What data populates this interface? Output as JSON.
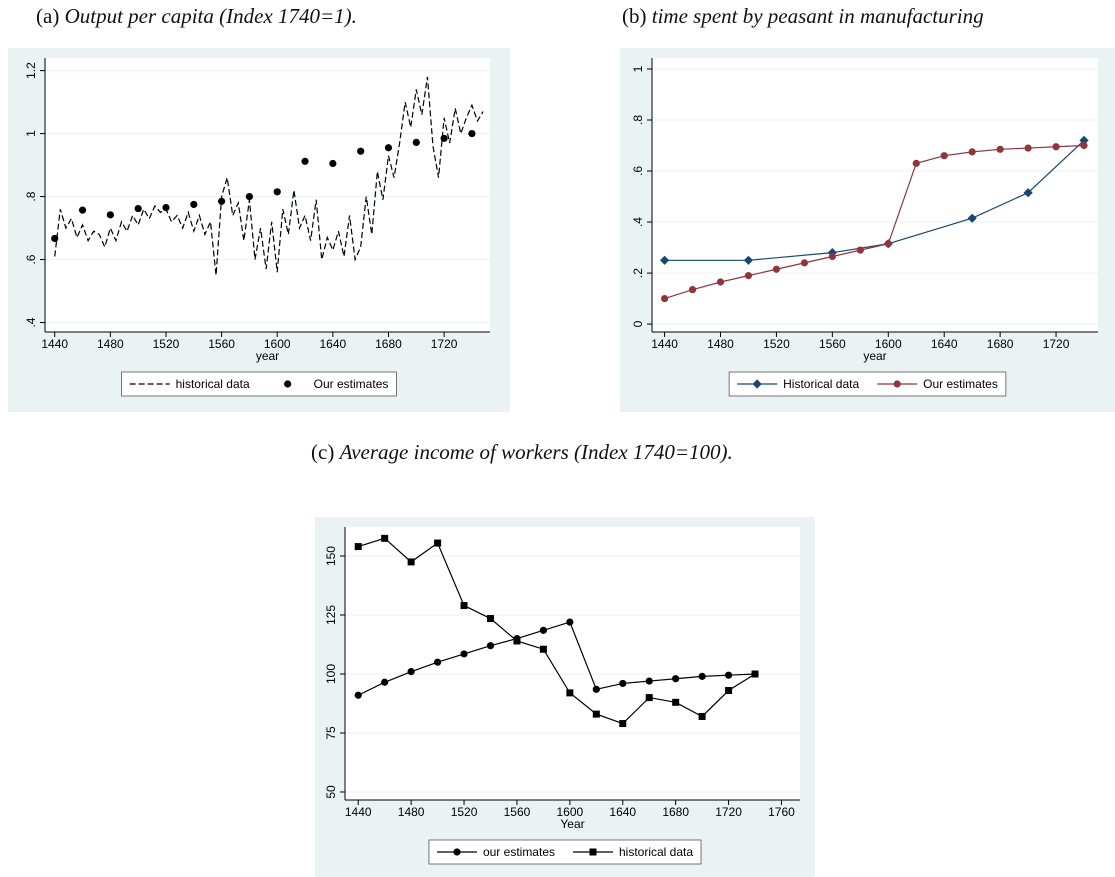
{
  "chart_data": [
    {
      "type": "line",
      "label": "(a)",
      "title": "Output per capita (Index 1740=1).",
      "xlabel": "year",
      "xlim": [
        1433,
        1753
      ],
      "xticks": [
        1440,
        1480,
        1520,
        1560,
        1600,
        1640,
        1680,
        1720
      ],
      "ylim": [
        0.37,
        1.24
      ],
      "yticks": [
        {
          "value": 0.4,
          "label": ".4"
        },
        {
          "value": 0.6,
          "label": ".6"
        },
        {
          "value": 0.8,
          "label": ".8"
        },
        1,
        1.2
      ],
      "grid": true,
      "legend": "bottom",
      "series": [
        {
          "name": "historical data",
          "color": "#000000",
          "line": "dashed",
          "marker": "none",
          "x": [
            1440,
            1444,
            1448,
            1452,
            1456,
            1460,
            1464,
            1468,
            1472,
            1476,
            1480,
            1484,
            1488,
            1492,
            1496,
            1500,
            1504,
            1508,
            1512,
            1516,
            1520,
            1524,
            1528,
            1532,
            1536,
            1540,
            1544,
            1548,
            1552,
            1556,
            1560,
            1564,
            1568,
            1572,
            1576,
            1580,
            1584,
            1588,
            1592,
            1596,
            1600,
            1604,
            1608,
            1612,
            1616,
            1620,
            1624,
            1628,
            1632,
            1636,
            1640,
            1644,
            1648,
            1652,
            1656,
            1660,
            1664,
            1668,
            1672,
            1676,
            1680,
            1684,
            1688,
            1692,
            1696,
            1700,
            1704,
            1708,
            1712,
            1716,
            1720,
            1724,
            1728,
            1732,
            1736,
            1740,
            1744,
            1748
          ],
          "values": [
            0.61,
            0.76,
            0.7,
            0.73,
            0.67,
            0.71,
            0.66,
            0.69,
            0.68,
            0.64,
            0.7,
            0.66,
            0.72,
            0.69,
            0.74,
            0.71,
            0.76,
            0.73,
            0.77,
            0.75,
            0.76,
            0.72,
            0.74,
            0.7,
            0.75,
            0.69,
            0.74,
            0.68,
            0.72,
            0.55,
            0.8,
            0.86,
            0.74,
            0.78,
            0.66,
            0.79,
            0.6,
            0.7,
            0.57,
            0.72,
            0.56,
            0.76,
            0.68,
            0.82,
            0.7,
            0.74,
            0.66,
            0.79,
            0.6,
            0.67,
            0.63,
            0.69,
            0.61,
            0.74,
            0.6,
            0.64,
            0.8,
            0.68,
            0.88,
            0.79,
            0.93,
            0.86,
            0.97,
            1.1,
            1.02,
            1.14,
            1.06,
            1.18,
            0.96,
            0.86,
            1.05,
            0.97,
            1.08,
            1.0,
            1.05,
            1.09,
            1.04,
            1.07
          ]
        },
        {
          "name": "Our estimates",
          "color": "#000000",
          "line": "none",
          "marker": "circle",
          "x": [
            1440,
            1460,
            1480,
            1500,
            1520,
            1540,
            1560,
            1580,
            1600,
            1620,
            1640,
            1660,
            1680,
            1700,
            1720,
            1740
          ],
          "values": [
            0.667,
            0.757,
            0.742,
            0.762,
            0.765,
            0.775,
            0.785,
            0.8,
            0.815,
            0.912,
            0.905,
            0.944,
            0.955,
            0.972,
            0.985,
            1.0
          ]
        }
      ]
    },
    {
      "type": "line",
      "label": "(b)",
      "title": "time spent by peasant in manufacturing",
      "xlabel": "year",
      "xlim": [
        1431,
        1750
      ],
      "xticks": [
        1440,
        1480,
        1520,
        1560,
        1600,
        1640,
        1680,
        1720
      ],
      "ylim": [
        -0.031,
        1.043
      ],
      "yticks": [
        0,
        {
          "value": 0.2,
          "label": ".2"
        },
        {
          "value": 0.4,
          "label": ".4"
        },
        {
          "value": 0.6,
          "label": ".6"
        },
        {
          "value": 0.8,
          "label": ".8"
        },
        1
      ],
      "grid": true,
      "legend": "bottom",
      "series": [
        {
          "name": "Historical data",
          "color": "#1a476f",
          "line": "solid",
          "marker": "diamond",
          "x": [
            1440,
            1500,
            1560,
            1600,
            1660,
            1700,
            1740
          ],
          "values": [
            0.25,
            0.25,
            0.28,
            0.315,
            0.415,
            0.515,
            0.72
          ]
        },
        {
          "name": "Our estimates",
          "color": "#90353b",
          "line": "solid",
          "marker": "circle",
          "x": [
            1440,
            1460,
            1480,
            1500,
            1520,
            1540,
            1560,
            1580,
            1600,
            1620,
            1640,
            1660,
            1680,
            1700,
            1720,
            1740
          ],
          "values": [
            0.1,
            0.135,
            0.165,
            0.19,
            0.215,
            0.24,
            0.265,
            0.29,
            0.315,
            0.63,
            0.66,
            0.675,
            0.685,
            0.69,
            0.695,
            0.7
          ]
        }
      ]
    },
    {
      "type": "line",
      "label": "(c)",
      "title": "Average income of workers (Index 1740=100).",
      "xlabel": "Year",
      "xlim": [
        1430,
        1774
      ],
      "xticks": [
        1440,
        1480,
        1520,
        1560,
        1600,
        1640,
        1680,
        1720,
        1760
      ],
      "ylim": [
        46.6,
        162.3
      ],
      "yticks": [
        50,
        75,
        100,
        125,
        150
      ],
      "grid": true,
      "legend": "bottom",
      "series": [
        {
          "name": "our estimates",
          "color": "#000000",
          "line": "solid",
          "marker": "circle",
          "x": [
            1440,
            1460,
            1480,
            1500,
            1520,
            1540,
            1560,
            1580,
            1600,
            1620,
            1640,
            1660,
            1680,
            1700,
            1720,
            1740
          ],
          "values": [
            91,
            96.5,
            101,
            105,
            108.5,
            112,
            115,
            118.5,
            122,
            93.5,
            96,
            97,
            98,
            99,
            99.5,
            100
          ]
        },
        {
          "name": "historical data",
          "color": "#000000",
          "line": "solid",
          "marker": "square",
          "x": [
            1440,
            1460,
            1480,
            1500,
            1520,
            1540,
            1560,
            1580,
            1600,
            1620,
            1640,
            1660,
            1680,
            1700,
            1720,
            1740
          ],
          "values": [
            154,
            157.5,
            147.5,
            155.5,
            129,
            123.5,
            114,
            110.5,
            92,
            83,
            79,
            90,
            88,
            82,
            93,
            100
          ]
        }
      ]
    }
  ]
}
